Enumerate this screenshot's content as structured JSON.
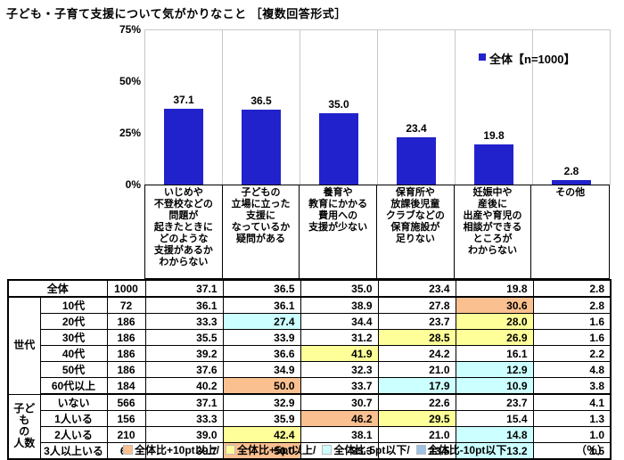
{
  "title": "子ども・子育て支援について気がかりなこと ［複数回答形式］",
  "palette": {
    "bar": "#2222CC",
    "grid": "#C8C8C8",
    "orange": "#FAC090",
    "yellow": "#FFFF99",
    "cyan": "#CCFFFF",
    "blue": "#9CC3E8"
  },
  "chart_data": {
    "type": "bar",
    "title": "子ども・子育て支援について気がかりなこと ［複数回答形式］",
    "legend": "全体【n=1000】",
    "legend_position": "top-right",
    "ylim": [
      0,
      75
    ],
    "yticks": [
      "75%",
      "50%",
      "25%",
      "0%"
    ],
    "grid": "vertical-only",
    "categories": [
      "いじめや\n不登校などの\n問題が\n起きたときに\nどのような\n支援があるか\nわからない",
      "子どもの\n立場に立った\n支援に\nなっているか\n疑問がある",
      "養育や\n教育にかかる\n費用への\n支援が少ない",
      "保育所や\n放課後児童\nクラブなどの\n保育施設が\n足りない",
      "妊娠中や\n産後に\n出産や育児の\n相談ができる\nところが\nわからない",
      "その他"
    ],
    "values": [
      37.1,
      36.5,
      35.0,
      23.4,
      19.8,
      2.8
    ]
  },
  "table": {
    "unit": "%",
    "rows": [
      {
        "group": null,
        "merged": true,
        "label": "全体",
        "n": "1000",
        "values": [
          "37.1",
          "36.5",
          "35.0",
          "23.4",
          "19.8",
          "2.8"
        ],
        "colors": [
          null,
          null,
          null,
          null,
          null,
          null
        ],
        "thick_bottom": true
      },
      {
        "group": {
          "label": "世代",
          "rowspan": 6
        },
        "label": "10代",
        "n": "72",
        "values": [
          "36.1",
          "36.1",
          "38.9",
          "27.8",
          "30.6",
          "2.8"
        ],
        "colors": [
          null,
          null,
          null,
          null,
          "orange",
          null
        ],
        "thick_bottom": false
      },
      {
        "group": null,
        "label": "20代",
        "n": "186",
        "values": [
          "33.3",
          "27.4",
          "34.4",
          "23.7",
          "28.0",
          "1.6"
        ],
        "colors": [
          null,
          "cyan",
          null,
          null,
          "yellow",
          null
        ],
        "thick_bottom": false
      },
      {
        "group": null,
        "label": "30代",
        "n": "186",
        "values": [
          "35.5",
          "33.9",
          "31.2",
          "28.5",
          "26.9",
          "1.6"
        ],
        "colors": [
          null,
          null,
          null,
          "yellow",
          "yellow",
          null
        ],
        "thick_bottom": false
      },
      {
        "group": null,
        "label": "40代",
        "n": "186",
        "values": [
          "39.2",
          "36.6",
          "41.9",
          "24.2",
          "16.1",
          "2.2"
        ],
        "colors": [
          null,
          null,
          "yellow",
          null,
          null,
          null
        ],
        "thick_bottom": false
      },
      {
        "group": null,
        "label": "50代",
        "n": "186",
        "values": [
          "37.6",
          "34.9",
          "32.3",
          "21.0",
          "12.9",
          "4.8"
        ],
        "colors": [
          null,
          null,
          null,
          null,
          "cyan",
          null
        ],
        "thick_bottom": false
      },
      {
        "group": null,
        "label": "60代以上",
        "n": "184",
        "values": [
          "40.2",
          "50.0",
          "33.7",
          "17.9",
          "10.9",
          "3.8"
        ],
        "colors": [
          null,
          "orange",
          null,
          "cyan",
          "cyan",
          null
        ],
        "thick_bottom": true
      },
      {
        "group": {
          "label": "子ども\nの\n人数",
          "rowspan": 4
        },
        "label": "いない",
        "n": "566",
        "values": [
          "37.1",
          "32.9",
          "30.7",
          "22.6",
          "23.7",
          "4.1"
        ],
        "colors": [
          null,
          null,
          null,
          null,
          null,
          null
        ],
        "thick_bottom": false
      },
      {
        "group": null,
        "label": "1人いる",
        "n": "156",
        "values": [
          "33.3",
          "35.9",
          "46.2",
          "29.5",
          "15.4",
          "1.3"
        ],
        "colors": [
          null,
          null,
          "orange",
          "yellow",
          null,
          null
        ],
        "thick_bottom": false
      },
      {
        "group": null,
        "label": "2人いる",
        "n": "210",
        "values": [
          "39.0",
          "42.4",
          "38.1",
          "21.0",
          "14.8",
          "1.0"
        ],
        "colors": [
          null,
          "yellow",
          null,
          null,
          "cyan",
          null
        ],
        "thick_bottom": false
      },
      {
        "group": null,
        "label": "3人以上いる",
        "n": "68",
        "values": [
          "39.7",
          "50.0",
          "35.3",
          "23.5",
          "13.2",
          "1.5"
        ],
        "colors": [
          null,
          "orange",
          null,
          null,
          "cyan",
          null
        ],
        "thick_bottom": false
      }
    ]
  },
  "footer": {
    "items": [
      {
        "color": "orange",
        "label": "全体比+10pt以上/"
      },
      {
        "color": "yellow",
        "label": "全体比+5pt以上/"
      },
      {
        "color": "cyan",
        "label": "全体比-5pt以下/"
      },
      {
        "color": "blue",
        "label": "全体比-10pt以下"
      }
    ],
    "unit": "（％）"
  }
}
